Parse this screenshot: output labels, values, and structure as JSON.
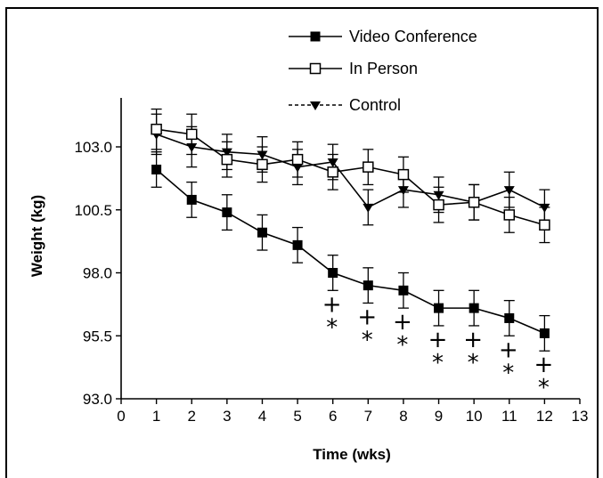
{
  "chart_data": {
    "type": "line",
    "xlabel": "Time (wks)",
    "ylabel": "Weight (kg)",
    "xlim": [
      0,
      13
    ],
    "ylim": [
      93.0,
      105.0
    ],
    "x_ticks": [
      "0",
      "1",
      "2",
      "3",
      "4",
      "5",
      "6",
      "7",
      "8",
      "9",
      "10",
      "11",
      "12",
      "13"
    ],
    "y_ticks": [
      "93.0",
      "95.5",
      "98.0",
      "100.5",
      "103.0"
    ],
    "x": [
      1,
      2,
      3,
      4,
      5,
      6,
      7,
      8,
      9,
      10,
      11,
      12
    ],
    "legend_position": "top-center",
    "series": [
      {
        "name": "Video Conference",
        "marker": "filled-square",
        "values": [
          102.1,
          100.9,
          100.4,
          99.6,
          99.1,
          98.0,
          97.5,
          97.3,
          96.6,
          96.6,
          96.2,
          95.6
        ],
        "errors": [
          0.7,
          0.7,
          0.7,
          0.7,
          0.7,
          0.7,
          0.7,
          0.7,
          0.7,
          0.7,
          0.7,
          0.7
        ],
        "significance": [
          "",
          "",
          "",
          "",
          "",
          "+*",
          "+*",
          "+*",
          "+*",
          "+*",
          "+*",
          "+*"
        ]
      },
      {
        "name": "In Person",
        "marker": "open-square",
        "values": [
          103.7,
          103.5,
          102.5,
          102.3,
          102.5,
          102.0,
          102.2,
          101.9,
          100.7,
          100.8,
          100.3,
          99.9
        ],
        "errors": [
          0.8,
          0.8,
          0.7,
          0.7,
          0.7,
          0.7,
          0.7,
          0.7,
          0.7,
          0.7,
          0.7,
          0.7
        ]
      },
      {
        "name": "Control",
        "marker": "filled-triangle-down",
        "values": [
          103.5,
          103.0,
          102.8,
          102.7,
          102.2,
          102.4,
          100.6,
          101.3,
          101.1,
          100.8,
          101.3,
          100.6
        ],
        "errors": [
          0.8,
          0.8,
          0.7,
          0.7,
          0.7,
          0.7,
          0.7,
          0.7,
          0.7,
          0.7,
          0.7,
          0.7
        ]
      }
    ]
  }
}
